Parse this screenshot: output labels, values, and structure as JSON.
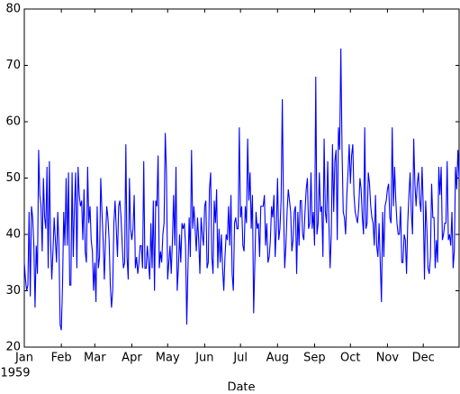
{
  "chart_data": {
    "type": "line",
    "x_label": "Date",
    "year_label": "1959",
    "values": [
      35,
      32,
      30,
      31,
      44,
      29,
      45,
      43,
      38,
      27,
      38,
      33,
      55,
      47,
      45,
      37,
      50,
      43,
      41,
      52,
      34,
      53,
      39,
      32,
      37,
      43,
      39,
      35,
      44,
      38,
      24,
      23,
      31,
      44,
      38,
      50,
      38,
      51,
      31,
      31,
      51,
      36,
      45,
      51,
      34,
      52,
      47,
      45,
      46,
      39,
      48,
      37,
      35,
      52,
      42,
      45,
      39,
      37,
      30,
      35,
      28,
      45,
      34,
      36,
      50,
      44,
      39,
      32,
      39,
      45,
      43,
      39,
      31,
      27,
      30,
      42,
      46,
      41,
      36,
      45,
      46,
      43,
      38,
      34,
      35,
      56,
      36,
      32,
      50,
      41,
      39,
      41,
      47,
      34,
      36,
      33,
      35,
      38,
      38,
      34,
      53,
      34,
      34,
      38,
      35,
      32,
      42,
      34,
      46,
      30,
      46,
      45,
      54,
      34,
      37,
      35,
      40,
      42,
      58,
      51,
      32,
      35,
      38,
      33,
      39,
      47,
      38,
      52,
      30,
      34,
      40,
      35,
      42,
      41,
      42,
      38,
      24,
      34,
      43,
      36,
      55,
      41,
      45,
      41,
      37,
      43,
      39,
      33,
      43,
      40,
      38,
      45,
      46,
      34,
      35,
      48,
      51,
      36,
      33,
      46,
      42,
      48,
      34,
      41,
      35,
      40,
      34,
      30,
      36,
      40,
      39,
      45,
      38,
      47,
      33,
      30,
      42,
      43,
      41,
      41,
      59,
      43,
      45,
      38,
      37,
      45,
      42,
      57,
      46,
      51,
      41,
      47,
      26,
      35,
      44,
      41,
      42,
      36,
      45,
      45,
      45,
      47,
      38,
      42,
      35,
      36,
      39,
      45,
      43,
      47,
      36,
      41,
      50,
      39,
      41,
      46,
      64,
      45,
      34,
      38,
      44,
      48,
      46,
      44,
      37,
      39,
      44,
      45,
      33,
      44,
      38,
      46,
      46,
      40,
      39,
      44,
      48,
      50,
      41,
      42,
      51,
      41,
      44,
      38,
      68,
      40,
      42,
      51,
      44,
      45,
      36,
      57,
      44,
      42,
      53,
      42,
      34,
      40,
      56,
      44,
      53,
      55,
      39,
      59,
      55,
      73,
      55,
      44,
      43,
      40,
      47,
      51,
      56,
      49,
      54,
      56,
      47,
      44,
      43,
      42,
      45,
      50,
      48,
      43,
      40,
      59,
      41,
      42,
      51,
      49,
      45,
      43,
      42,
      38,
      47,
      38,
      36,
      42,
      35,
      28,
      44,
      36,
      45,
      46,
      48,
      49,
      43,
      42,
      59,
      45,
      52,
      46,
      42,
      40,
      40,
      45,
      35,
      35,
      40,
      39,
      33,
      42,
      47,
      51,
      44,
      40,
      57,
      49,
      45,
      49,
      51,
      46,
      44,
      52,
      45,
      32,
      46,
      41,
      34,
      33,
      36,
      49,
      43,
      43,
      34,
      39,
      35,
      52,
      47,
      52,
      39,
      40,
      42,
      42,
      53,
      39,
      40,
      38,
      44,
      34,
      37,
      52,
      48,
      55,
      50
    ],
    "color": "#0000ff",
    "xlim": [
      0,
      364
    ],
    "xticks": [
      {
        "value": 0,
        "label": "Jan"
      },
      {
        "value": 31,
        "label": "Feb"
      },
      {
        "value": 59,
        "label": "Mar"
      },
      {
        "value": 90,
        "label": "Apr"
      },
      {
        "value": 120,
        "label": "May"
      },
      {
        "value": 151,
        "label": "Jun"
      },
      {
        "value": 181,
        "label": "Jul"
      },
      {
        "value": 212,
        "label": "Aug"
      },
      {
        "value": 243,
        "label": "Sep"
      },
      {
        "value": 273,
        "label": "Oct"
      },
      {
        "value": 304,
        "label": "Nov"
      },
      {
        "value": 334,
        "label": "Dec"
      }
    ],
    "ylim": [
      20,
      80
    ],
    "yticks": [
      20,
      30,
      40,
      50,
      60,
      70,
      80
    ]
  }
}
